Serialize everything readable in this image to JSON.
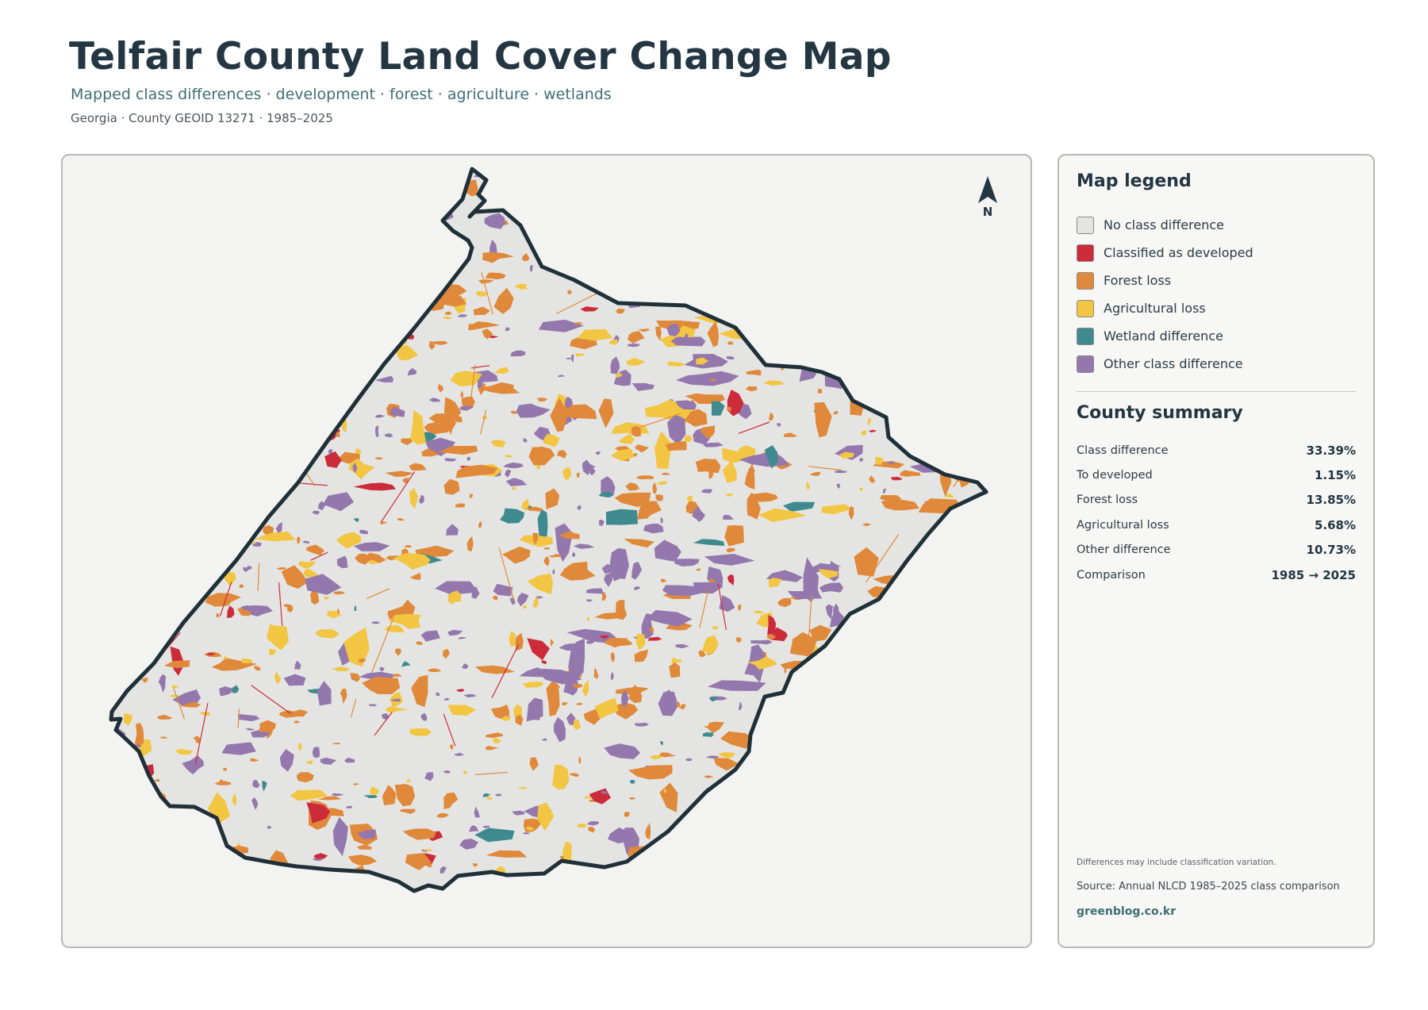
{
  "header": {
    "title": "Telfair County Land Cover Change Map",
    "subtitle": "Mapped class differences · development · forest · agriculture · wetlands",
    "meta": "Georgia · County GEOID 13271 · 1985–2025"
  },
  "map": {
    "north_label": "N",
    "outline_color": "#1f3038",
    "base_color": "#e4e5e2",
    "patch_mix": {
      "forest_loss": 0.42,
      "other_class_difference": 0.3,
      "agricultural_loss": 0.2,
      "classified_as_developed": 0.04,
      "wetland_difference": 0.04
    }
  },
  "legend": {
    "heading": "Map legend",
    "items": [
      {
        "label": "No class difference",
        "color": "#e4e4e2"
      },
      {
        "label": "Classified as developed",
        "color": "#cc2b3a"
      },
      {
        "label": "Forest loss",
        "color": "#e0893a"
      },
      {
        "label": "Agricultural loss",
        "color": "#f2c542"
      },
      {
        "label": "Wetland difference",
        "color": "#3f8a8e"
      },
      {
        "label": "Other class difference",
        "color": "#9478ad"
      }
    ]
  },
  "summary": {
    "heading": "County summary",
    "rows": [
      {
        "key": "Class difference",
        "value": "33.39%"
      },
      {
        "key": "To developed",
        "value": "1.15%"
      },
      {
        "key": "Forest loss",
        "value": "13.85%"
      },
      {
        "key": "Agricultural loss",
        "value": "5.68%"
      },
      {
        "key": "Other difference",
        "value": "10.73%"
      },
      {
        "key": "Comparison",
        "value": "1985 → 2025"
      }
    ]
  },
  "footer": {
    "note": "Differences may include classification variation.",
    "source": "Source: Annual NLCD 1985–2025 class comparison",
    "site": "greenblog.co.kr"
  }
}
